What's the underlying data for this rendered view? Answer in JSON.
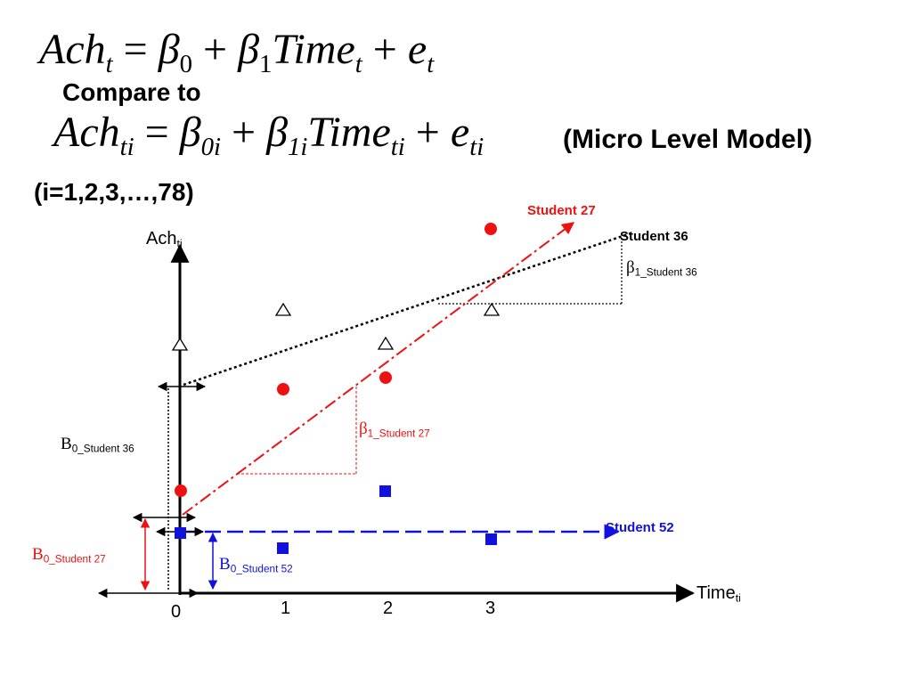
{
  "equations": {
    "macro": {
      "lhs": "Ach",
      "lhs_sub": "t",
      "eq": "=",
      "b0": "β",
      "b0_sub": "0",
      "plus1": "+",
      "b1": "β",
      "b1_sub": "1",
      "time": "Time",
      "time_sub": "t",
      "plus2": "+",
      "err": "e",
      "err_sub": "t"
    },
    "compare_label": "Compare to",
    "micro": {
      "lhs": "Ach",
      "lhs_sub": "ti",
      "eq": "=",
      "b0": "β",
      "b0_sub": "0i",
      "plus1": "+",
      "b1": "β",
      "b1_sub": "1i",
      "time": "Time",
      "time_sub": "ti",
      "plus2": "+",
      "err": "e",
      "err_sub": "ti"
    },
    "micro_label": "(Micro Level Model)",
    "index_label": "(i=1,2,3,…,78)"
  },
  "axes": {
    "y_label": "Ach",
    "y_label_sub": "ti",
    "x_label": "Time",
    "x_label_sub": "ti",
    "x_ticks": [
      "0",
      "1",
      "2",
      "3"
    ]
  },
  "labels": {
    "student27": "Student 27",
    "student36": "Student 36",
    "student52": "Student 52",
    "beta": "β",
    "slope36_sub": "1_Student 36",
    "slope27_sub": "1_Student 27",
    "b0": "B",
    "int36_sub": "0_Student 36",
    "int27_sub": "0_Student 27",
    "int52_sub": "0_Student 52"
  },
  "colors": {
    "student27": "#ee1111",
    "student36": "#000000",
    "student52": "#1111dd"
  }
}
